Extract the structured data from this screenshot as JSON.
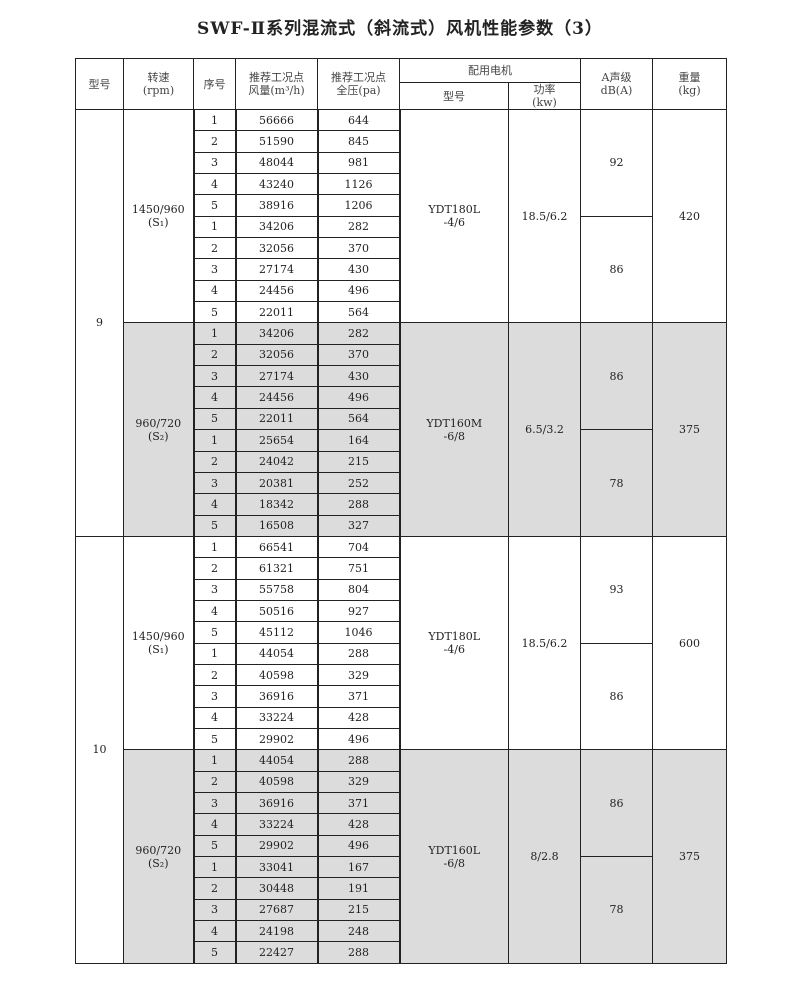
{
  "title": "SWF-Ⅱ系列混流式（斜流式）风机性能参数（3）",
  "headers": {
    "model": "型号",
    "speed": "转速",
    "speed_unit": "(rpm)",
    "seq": "序号",
    "flow": "推荐工况点",
    "flow_unit": "风量(m³/h)",
    "pressure": "推荐工况点",
    "pressure_unit": "全压(pa)",
    "motor": "配用电机",
    "motor_model": "型号",
    "power": "功率",
    "power_unit": "(kw)",
    "noise": "A声级",
    "noise_unit": "dB(A)",
    "weight": "重量",
    "weight_unit": "(kg)"
  },
  "models": [
    {
      "model": "9",
      "speeds": [
        {
          "speed": "1450/960",
          "sub": "(S₁)",
          "motor": [
            "YDT180L",
            "-4/6"
          ],
          "power": "18.5/6.2",
          "noise": [
            "92",
            "86"
          ],
          "weight": "420",
          "shaded": false,
          "rows": [
            [
              "1",
              "56666",
              "644"
            ],
            [
              "2",
              "51590",
              "845"
            ],
            [
              "3",
              "48044",
              "981"
            ],
            [
              "4",
              "43240",
              "1126"
            ],
            [
              "5",
              "38916",
              "1206"
            ],
            [
              "1",
              "34206",
              "282"
            ],
            [
              "2",
              "32056",
              "370"
            ],
            [
              "3",
              "27174",
              "430"
            ],
            [
              "4",
              "24456",
              "496"
            ],
            [
              "5",
              "22011",
              "564"
            ]
          ]
        },
        {
          "speed": "960/720",
          "sub": "(S₂)",
          "motor": [
            "YDT160M",
            "-6/8"
          ],
          "power": "6.5/3.2",
          "noise": [
            "86",
            "78"
          ],
          "weight": "375",
          "shaded": true,
          "rows": [
            [
              "1",
              "34206",
              "282"
            ],
            [
              "2",
              "32056",
              "370"
            ],
            [
              "3",
              "27174",
              "430"
            ],
            [
              "4",
              "24456",
              "496"
            ],
            [
              "5",
              "22011",
              "564"
            ],
            [
              "1",
              "25654",
              "164"
            ],
            [
              "2",
              "24042",
              "215"
            ],
            [
              "3",
              "20381",
              "252"
            ],
            [
              "4",
              "18342",
              "288"
            ],
            [
              "5",
              "16508",
              "327"
            ]
          ]
        }
      ]
    },
    {
      "model": "10",
      "speeds": [
        {
          "speed": "1450/960",
          "sub": "(S₁)",
          "motor": [
            "YDT180L",
            "-4/6"
          ],
          "power": "18.5/6.2",
          "noise": [
            "93",
            "86"
          ],
          "weight": "600",
          "shaded": false,
          "rows": [
            [
              "1",
              "66541",
              "704"
            ],
            [
              "2",
              "61321",
              "751"
            ],
            [
              "3",
              "55758",
              "804"
            ],
            [
              "4",
              "50516",
              "927"
            ],
            [
              "5",
              "45112",
              "1046"
            ],
            [
              "1",
              "44054",
              "288"
            ],
            [
              "2",
              "40598",
              "329"
            ],
            [
              "3",
              "36916",
              "371"
            ],
            [
              "4",
              "33224",
              "428"
            ],
            [
              "5",
              "29902",
              "496"
            ]
          ]
        },
        {
          "speed": "960/720",
          "sub": "(S₂)",
          "motor": [
            "YDT160L",
            "-6/8"
          ],
          "power": "8/2.8",
          "noise": [
            "86",
            "78"
          ],
          "weight": "375",
          "shaded": true,
          "rows": [
            [
              "1",
              "44054",
              "288"
            ],
            [
              "2",
              "40598",
              "329"
            ],
            [
              "3",
              "36916",
              "371"
            ],
            [
              "4",
              "33224",
              "428"
            ],
            [
              "5",
              "29902",
              "496"
            ],
            [
              "1",
              "33041",
              "167"
            ],
            [
              "2",
              "30448",
              "191"
            ],
            [
              "3",
              "27687",
              "215"
            ],
            [
              "4",
              "24198",
              "248"
            ],
            [
              "5",
              "22427",
              "288"
            ]
          ]
        }
      ]
    }
  ]
}
